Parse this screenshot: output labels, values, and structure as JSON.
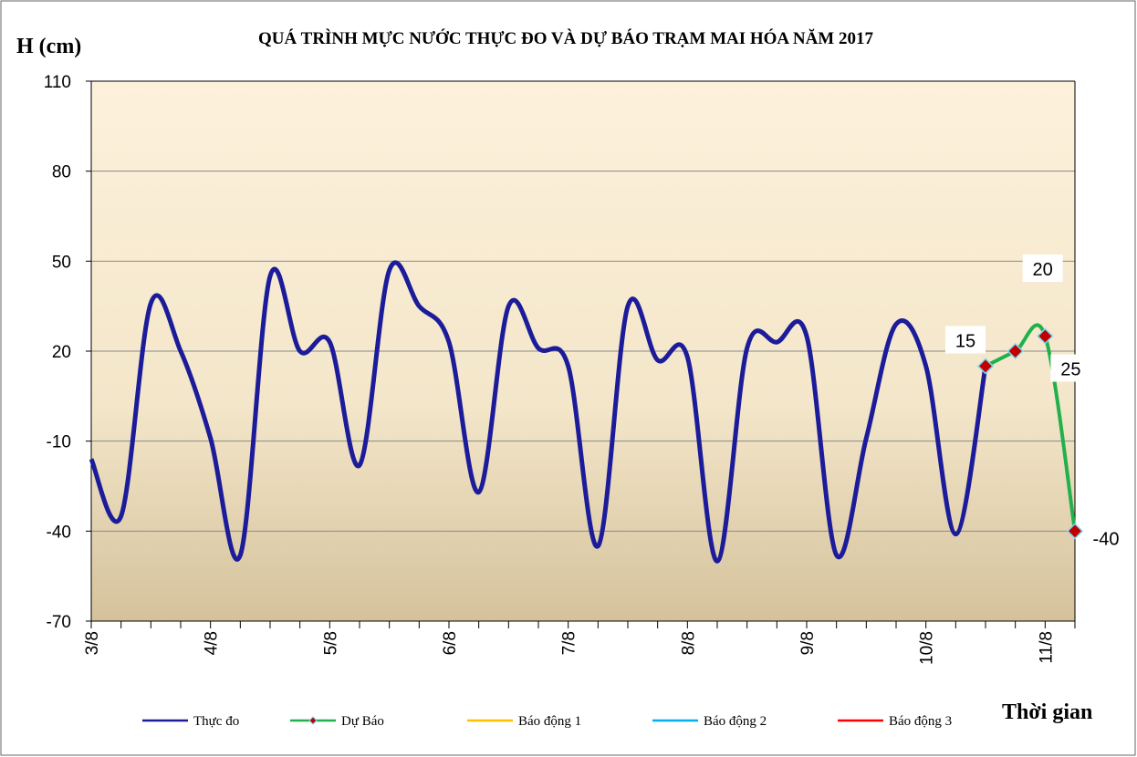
{
  "chart_data": {
    "type": "line",
    "title": "QUÁ TRÌNH MỰC NƯỚC THỰC ĐO VÀ DỰ BÁO TRẠM MAI HÓA NĂM  2017",
    "y_label": "H (cm)",
    "x_label": "Thời gian",
    "categories": [
      "3/8",
      null,
      null,
      null,
      "4/8",
      null,
      null,
      null,
      "5/8",
      null,
      null,
      null,
      "6/8",
      null,
      null,
      null,
      "7/8",
      null,
      null,
      null,
      "8/8",
      null,
      null,
      null,
      "9/8",
      null,
      null,
      null,
      "10/8",
      null,
      null,
      null,
      "11/8",
      null
    ],
    "series": [
      {
        "name": "Thực đo",
        "color": "#1c1c9a",
        "values": [
          -16,
          -35,
          36,
          20,
          -9,
          -48,
          45,
          20,
          23,
          -18,
          47,
          35,
          23,
          -27,
          35,
          21,
          15,
          -45,
          35,
          17,
          18,
          -50,
          21,
          23,
          25,
          -48,
          -9,
          29,
          15,
          -41,
          15,
          null,
          null,
          null
        ]
      },
      {
        "name": "Dự Báo",
        "color": "#22b04c",
        "marker_color": "#c00000",
        "values": [
          null,
          null,
          null,
          null,
          null,
          null,
          null,
          null,
          null,
          null,
          null,
          null,
          null,
          null,
          null,
          null,
          null,
          null,
          null,
          null,
          null,
          null,
          null,
          null,
          null,
          null,
          null,
          null,
          null,
          null,
          15,
          20,
          25,
          -40
        ]
      },
      {
        "name": "Báo động 1",
        "color": "#ffc000"
      },
      {
        "name": "Báo động 2",
        "color": "#00b0f0"
      },
      {
        "name": "Báo động 3",
        "color": "#ff0000"
      }
    ],
    "ylim": [
      -70,
      110
    ],
    "yticks": [
      -70,
      -40,
      -10,
      20,
      50,
      80,
      110
    ],
    "grid": true
  }
}
